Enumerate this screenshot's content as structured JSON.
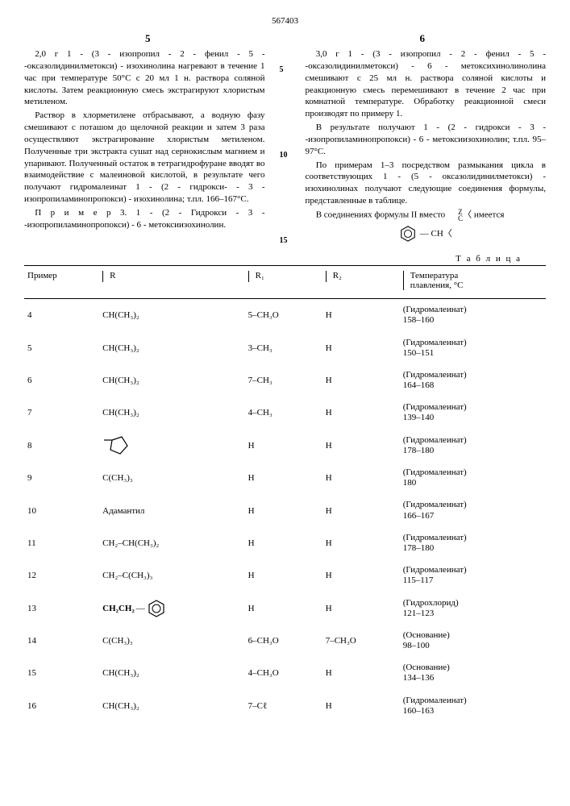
{
  "patent_number": "567403",
  "page_left": "5",
  "page_right": "6",
  "line_markers": [
    "5",
    "10",
    "15"
  ],
  "left_col": {
    "p1": "2,0 г 1 - (3 - изопропил - 2 - фенил - 5 - -оксазолидинилметокси) - изохинолина нагревают в течение 1 час при температуре 50°С с 20 мл 1 н. раствора соляной кислоты. Затем реакционную смесь экстрагируют хлористым метиленом.",
    "p2": "Раствор в хлорметилене отбрасывают, а водную фазу смешивают с поташом до щелочной реакции и затем 3 раза осуществляют экстрагирование хлористым метиленом. Полученные три экстракта сушат над сернокислым магнием и упаривают. Полученный остаток в тетрагидрофуране вводят во взаимодействие с малеиновой кислотой, в результате чего получают гидромалеинат 1 - (2 - гидрокси- - 3 - изопропиламинопропокси) - изохинолина; т.пл. 166–167°С.",
    "p3": "П р и м е р 3. 1 - (2 - Гидрокси - 3 - -изопропиламинопропокси) - 6 - метоксиизохинолин."
  },
  "right_col": {
    "p1": "3,0 г 1 - (3 - изопропил - 2 - фенил - 5 - -оксазолидинилметокси) - 6 - метоксихинолинолина смешивают с 25 мл н. раствора соляной кислоты и реакционную смесь перемешивают в течение 2 час при комнатной температуре. Обработку реакционной смеси производят по примеру 1.",
    "p2": "В результате получают 1 - (2 - гидрокси - 3 - -изопропиламинопропокси) - 6 - метоксиизохинолин; т.пл. 95–97°С.",
    "p3": "По примерам 1–3 посредством размыкания цикла в соответствующих 1 - (5 - оксазолидинилметокси) - изохинолинах получают следующие соединения формулы, представленные в таблице.",
    "p4_a": "В соединениях формулы II вместо ",
    "p4_b": " имеется",
    "frag_z": "Z",
    "frag_c": "C",
    "frag_ch": "— CH〈"
  },
  "table_label": "Т а б л и ц а",
  "headers": {
    "c1": "Пример",
    "c2": "R",
    "c3": "R₁",
    "c4": "R₂",
    "c5a": "Температура",
    "c5b": "плавления, °С"
  },
  "rows": [
    {
      "n": "4",
      "r": "CH(CH₃)₂",
      "r1": "5–CH₃O",
      "r2": "H",
      "mp1": "(Гидромалеинат)",
      "mp2": "158–160"
    },
    {
      "n": "5",
      "r": "CH(CH₃)₂",
      "r1": "3–CH₃",
      "r2": "H",
      "mp1": "(Гидромалеинат)",
      "mp2": "150–151"
    },
    {
      "n": "6",
      "r": "CH(CH₃)₂",
      "r1": "7–CH₃",
      "r2": "H",
      "mp1": "(Гидромалеинат)",
      "mp2": "164–168"
    },
    {
      "n": "7",
      "r": "CH(CH₃)₂",
      "r1": "4–CH₃",
      "r2": "H",
      "mp1": "(Гидромалеинат)",
      "mp2": "139–140"
    },
    {
      "n": "8",
      "r": "CYCLOPENTYL",
      "r1": "H",
      "r2": "H",
      "mp1": "(Гидромалеинат)",
      "mp2": "178–180"
    },
    {
      "n": "9",
      "r": "C(CH₃)₃",
      "r1": "H",
      "r2": "H",
      "mp1": "(Гидромалеинат)",
      "mp2": "180"
    },
    {
      "n": "10",
      "r": "Адамантил",
      "r1": "H",
      "r2": "H",
      "mp1": "(Гидромалеинат)",
      "mp2": "166–167"
    },
    {
      "n": "11",
      "r": "CH₂–CH(CH₃)₂",
      "r1": "H",
      "r2": "H",
      "mp1": "(Гидромалеинат)",
      "mp2": "178–180"
    },
    {
      "n": "12",
      "r": "CH₂–C(CH₃)₃",
      "r1": "H",
      "r2": "H",
      "mp1": "(Гидромалеинат)",
      "mp2": "115–117"
    },
    {
      "n": "13",
      "r": "CH2CH2PHENYL",
      "r1": "H",
      "r2": "H",
      "mp1": "(Гидрохлорид)",
      "mp2": "121–123"
    },
    {
      "n": "14",
      "r": "C(CH₃)₃",
      "r1": "6–CH₃O",
      "r2": "7–CH₃O",
      "mp1": "(Основание)",
      "mp2": "98–100"
    },
    {
      "n": "15",
      "r": "CH(CH₃)₂",
      "r1": "4–CH₃O",
      "r2": "H",
      "mp1": "(Основание)",
      "mp2": "134–136"
    },
    {
      "n": "16",
      "r": "CH(CH₃)₂",
      "r1": "7–Cℓ",
      "r2": "H",
      "mp1": "(Гидромалеинат)",
      "mp2": "160–163"
    }
  ]
}
